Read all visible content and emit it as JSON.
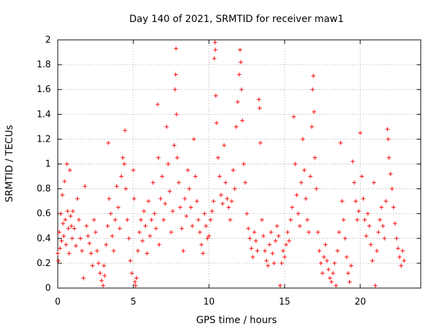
{
  "chart_data": {
    "type": "scatter",
    "title": "Day 140 of 2021, SRMTID for receiver maw1",
    "xlabel": "GPS time / hours",
    "ylabel": "SRMTID / TECUs",
    "xlim": [
      0,
      24
    ],
    "ylim": [
      0,
      2
    ],
    "xticks": [
      0,
      5,
      10,
      15,
      20
    ],
    "xtick_labels": [
      "0",
      "5",
      "10",
      "15",
      "20"
    ],
    "yticks": [
      0,
      0.2,
      0.4,
      0.6,
      0.8,
      1,
      1.2,
      1.4,
      1.6,
      1.8,
      2
    ],
    "ytick_labels": [
      "0",
      "0.2",
      "0.4",
      "0.6",
      "0.8",
      "1",
      "1.2",
      "1.4",
      "1.6",
      "1.8",
      "2"
    ],
    "grid": true,
    "marker": "plus",
    "color": "#ff0000",
    "series": [
      {
        "name": "SRMTID",
        "points": [
          [
            0.0,
            0.28
          ],
          [
            0.05,
            0.22
          ],
          [
            0.1,
            0.45
          ],
          [
            0.15,
            0.32
          ],
          [
            0.2,
            0.6
          ],
          [
            0.25,
            0.38
          ],
          [
            0.3,
            0.75
          ],
          [
            0.35,
            0.52
          ],
          [
            0.4,
            0.42
          ],
          [
            0.45,
            0.86
          ],
          [
            0.5,
            0.55
          ],
          [
            0.55,
            0.35
          ],
          [
            0.6,
            1.0
          ],
          [
            0.65,
            0.62
          ],
          [
            0.7,
            0.48
          ],
          [
            0.75,
            0.28
          ],
          [
            0.8,
            0.95
          ],
          [
            0.85,
            0.58
          ],
          [
            0.9,
            0.5
          ],
          [
            0.95,
            0.4
          ],
          [
            1.0,
            0.62
          ],
          [
            1.1,
            0.48
          ],
          [
            1.2,
            0.34
          ],
          [
            1.3,
            0.72
          ],
          [
            1.4,
            0.55
          ],
          [
            1.5,
            0.4
          ],
          [
            1.6,
            0.3
          ],
          [
            1.7,
            0.08
          ],
          [
            1.8,
            0.82
          ],
          [
            1.9,
            0.5
          ],
          [
            2.0,
            0.42
          ],
          [
            2.1,
            0.36
          ],
          [
            2.2,
            0.28
          ],
          [
            2.3,
            0.18
          ],
          [
            2.4,
            0.55
          ],
          [
            2.5,
            0.45
          ],
          [
            2.6,
            0.3
          ],
          [
            2.7,
            0.2
          ],
          [
            2.8,
            0.12
          ],
          [
            2.9,
            0.06
          ],
          [
            3.0,
            0.02
          ],
          [
            3.05,
            0.18
          ],
          [
            3.1,
            0.1
          ],
          [
            3.2,
            0.35
          ],
          [
            3.3,
            0.5
          ],
          [
            3.35,
            1.17
          ],
          [
            3.4,
            0.72
          ],
          [
            3.5,
            0.6
          ],
          [
            3.6,
            0.42
          ],
          [
            3.7,
            0.3
          ],
          [
            3.8,
            0.55
          ],
          [
            3.9,
            0.82
          ],
          [
            4.0,
            0.65
          ],
          [
            4.1,
            0.48
          ],
          [
            4.2,
            0.9
          ],
          [
            4.3,
            1.05
          ],
          [
            4.4,
            1.0
          ],
          [
            4.45,
            1.27
          ],
          [
            4.5,
            0.8
          ],
          [
            4.6,
            0.55
          ],
          [
            4.7,
            0.4
          ],
          [
            4.8,
            0.22
          ],
          [
            4.9,
            0.12
          ],
          [
            5.0,
            0.95
          ],
          [
            5.05,
            0.72
          ],
          [
            5.1,
            0.05
          ],
          [
            5.15,
            0.02
          ],
          [
            5.2,
            0.08
          ],
          [
            5.3,
            0.3
          ],
          [
            5.4,
            0.45
          ],
          [
            5.5,
            0.55
          ],
          [
            5.6,
            0.38
          ],
          [
            5.7,
            0.62
          ],
          [
            5.8,
            0.5
          ],
          [
            5.9,
            0.28
          ],
          [
            6.0,
            0.7
          ],
          [
            6.1,
            0.42
          ],
          [
            6.2,
            0.55
          ],
          [
            6.3,
            0.85
          ],
          [
            6.4,
            0.6
          ],
          [
            6.5,
            0.48
          ],
          [
            6.6,
            1.48
          ],
          [
            6.65,
            1.05
          ],
          [
            6.7,
            0.35
          ],
          [
            6.8,
            0.72
          ],
          [
            6.9,
            0.9
          ],
          [
            7.0,
            0.55
          ],
          [
            7.1,
            0.68
          ],
          [
            7.2,
            1.3
          ],
          [
            7.3,
            1.0
          ],
          [
            7.4,
            0.78
          ],
          [
            7.5,
            0.45
          ],
          [
            7.6,
            0.62
          ],
          [
            7.7,
            1.15
          ],
          [
            7.75,
            1.6
          ],
          [
            7.8,
            1.72
          ],
          [
            7.82,
            1.93
          ],
          [
            7.85,
            1.4
          ],
          [
            7.9,
            1.05
          ],
          [
            8.0,
            0.85
          ],
          [
            8.1,
            0.65
          ],
          [
            8.2,
            0.48
          ],
          [
            8.3,
            0.3
          ],
          [
            8.4,
            0.72
          ],
          [
            8.5,
            0.58
          ],
          [
            8.6,
            0.95
          ],
          [
            8.7,
            0.8
          ],
          [
            8.8,
            0.65
          ],
          [
            8.9,
            0.5
          ],
          [
            9.0,
            1.2
          ],
          [
            9.1,
            0.9
          ],
          [
            9.2,
            0.7
          ],
          [
            9.3,
            0.55
          ],
          [
            9.4,
            0.45
          ],
          [
            9.5,
            0.35
          ],
          [
            9.6,
            0.28
          ],
          [
            9.7,
            0.6
          ],
          [
            9.8,
            0.5
          ],
          [
            9.9,
            0.4
          ],
          [
            10.0,
            0.42
          ],
          [
            10.1,
            0.55
          ],
          [
            10.2,
            0.62
          ],
          [
            10.3,
            0.7
          ],
          [
            10.35,
            1.85
          ],
          [
            10.4,
            1.98
          ],
          [
            10.42,
            1.92
          ],
          [
            10.45,
            1.55
          ],
          [
            10.5,
            1.33
          ],
          [
            10.6,
            1.05
          ],
          [
            10.7,
            0.9
          ],
          [
            10.8,
            0.75
          ],
          [
            10.9,
            0.68
          ],
          [
            11.0,
            1.15
          ],
          [
            11.1,
            0.85
          ],
          [
            11.2,
            0.72
          ],
          [
            11.3,
            0.65
          ],
          [
            11.4,
            0.55
          ],
          [
            11.5,
            0.7
          ],
          [
            11.6,
            0.95
          ],
          [
            11.7,
            0.8
          ],
          [
            11.8,
            1.3
          ],
          [
            11.9,
            1.5
          ],
          [
            12.0,
            1.72
          ],
          [
            12.05,
            1.92
          ],
          [
            12.1,
            1.82
          ],
          [
            12.15,
            1.6
          ],
          [
            12.2,
            1.35
          ],
          [
            12.3,
            1.0
          ],
          [
            12.4,
            0.85
          ],
          [
            12.5,
            0.6
          ],
          [
            12.6,
            0.48
          ],
          [
            12.7,
            0.4
          ],
          [
            12.8,
            0.32
          ],
          [
            12.9,
            0.25
          ],
          [
            13.0,
            0.45
          ],
          [
            13.1,
            0.38
          ],
          [
            13.2,
            0.3
          ],
          [
            13.3,
            1.52
          ],
          [
            13.35,
            1.45
          ],
          [
            13.4,
            1.17
          ],
          [
            13.5,
            0.55
          ],
          [
            13.6,
            0.42
          ],
          [
            13.7,
            0.3
          ],
          [
            13.8,
            0.22
          ],
          [
            13.9,
            0.18
          ],
          [
            14.0,
            0.35
          ],
          [
            14.1,
            0.45
          ],
          [
            14.2,
            0.28
          ],
          [
            14.3,
            0.2
          ],
          [
            14.4,
            0.38
          ],
          [
            14.5,
            0.5
          ],
          [
            14.6,
            0.42
          ],
          [
            14.7,
            0.02
          ],
          [
            14.8,
            0.2
          ],
          [
            14.9,
            0.3
          ],
          [
            15.0,
            0.25
          ],
          [
            15.1,
            0.35
          ],
          [
            15.2,
            0.45
          ],
          [
            15.3,
            0.38
          ],
          [
            15.4,
            0.55
          ],
          [
            15.5,
            0.65
          ],
          [
            15.6,
            1.38
          ],
          [
            15.7,
            1.0
          ],
          [
            15.8,
            0.75
          ],
          [
            15.9,
            0.6
          ],
          [
            16.0,
            0.5
          ],
          [
            16.1,
            0.85
          ],
          [
            16.2,
            1.2
          ],
          [
            16.3,
            0.95
          ],
          [
            16.4,
            0.72
          ],
          [
            16.5,
            0.55
          ],
          [
            16.6,
            0.45
          ],
          [
            16.7,
            0.9
          ],
          [
            16.8,
            1.3
          ],
          [
            16.85,
            1.6
          ],
          [
            16.9,
            1.71
          ],
          [
            16.95,
            1.42
          ],
          [
            17.0,
            1.05
          ],
          [
            17.1,
            0.8
          ],
          [
            17.2,
            0.45
          ],
          [
            17.3,
            0.3
          ],
          [
            17.4,
            0.2
          ],
          [
            17.5,
            0.12
          ],
          [
            17.6,
            0.25
          ],
          [
            17.7,
            0.35
          ],
          [
            17.8,
            0.22
          ],
          [
            17.9,
            0.15
          ],
          [
            18.0,
            0.08
          ],
          [
            18.1,
            0.05
          ],
          [
            18.2,
            0.12
          ],
          [
            18.3,
            0.2
          ],
          [
            18.4,
            0.02
          ],
          [
            18.5,
            0.3
          ],
          [
            18.6,
            0.45
          ],
          [
            18.7,
            1.17
          ],
          [
            18.8,
            0.7
          ],
          [
            18.9,
            0.55
          ],
          [
            19.0,
            0.4
          ],
          [
            19.1,
            0.25
          ],
          [
            19.2,
            0.12
          ],
          [
            19.3,
            0.05
          ],
          [
            19.4,
            0.18
          ],
          [
            19.5,
            1.02
          ],
          [
            19.6,
            0.85
          ],
          [
            19.7,
            0.7
          ],
          [
            19.8,
            0.55
          ],
          [
            19.9,
            0.62
          ],
          [
            20.0,
            1.25
          ],
          [
            20.1,
            0.9
          ],
          [
            20.2,
            0.72
          ],
          [
            20.3,
            0.55
          ],
          [
            20.4,
            0.42
          ],
          [
            20.5,
            0.6
          ],
          [
            20.6,
            0.5
          ],
          [
            20.7,
            0.35
          ],
          [
            20.8,
            0.22
          ],
          [
            20.9,
            0.85
          ],
          [
            21.0,
            0.02
          ],
          [
            21.1,
            0.3
          ],
          [
            21.2,
            0.45
          ],
          [
            21.3,
            0.55
          ],
          [
            21.4,
            0.65
          ],
          [
            21.5,
            0.5
          ],
          [
            21.6,
            0.4
          ],
          [
            21.7,
            0.7
          ],
          [
            21.8,
            1.28
          ],
          [
            21.85,
            1.2
          ],
          [
            21.9,
            1.05
          ],
          [
            22.0,
            0.92
          ],
          [
            22.1,
            0.8
          ],
          [
            22.2,
            0.65
          ],
          [
            22.3,
            0.52
          ],
          [
            22.4,
            0.4
          ],
          [
            22.5,
            0.32
          ],
          [
            22.6,
            0.25
          ],
          [
            22.7,
            0.18
          ],
          [
            22.8,
            0.3
          ],
          [
            22.9,
            0.22
          ]
        ]
      }
    ]
  }
}
